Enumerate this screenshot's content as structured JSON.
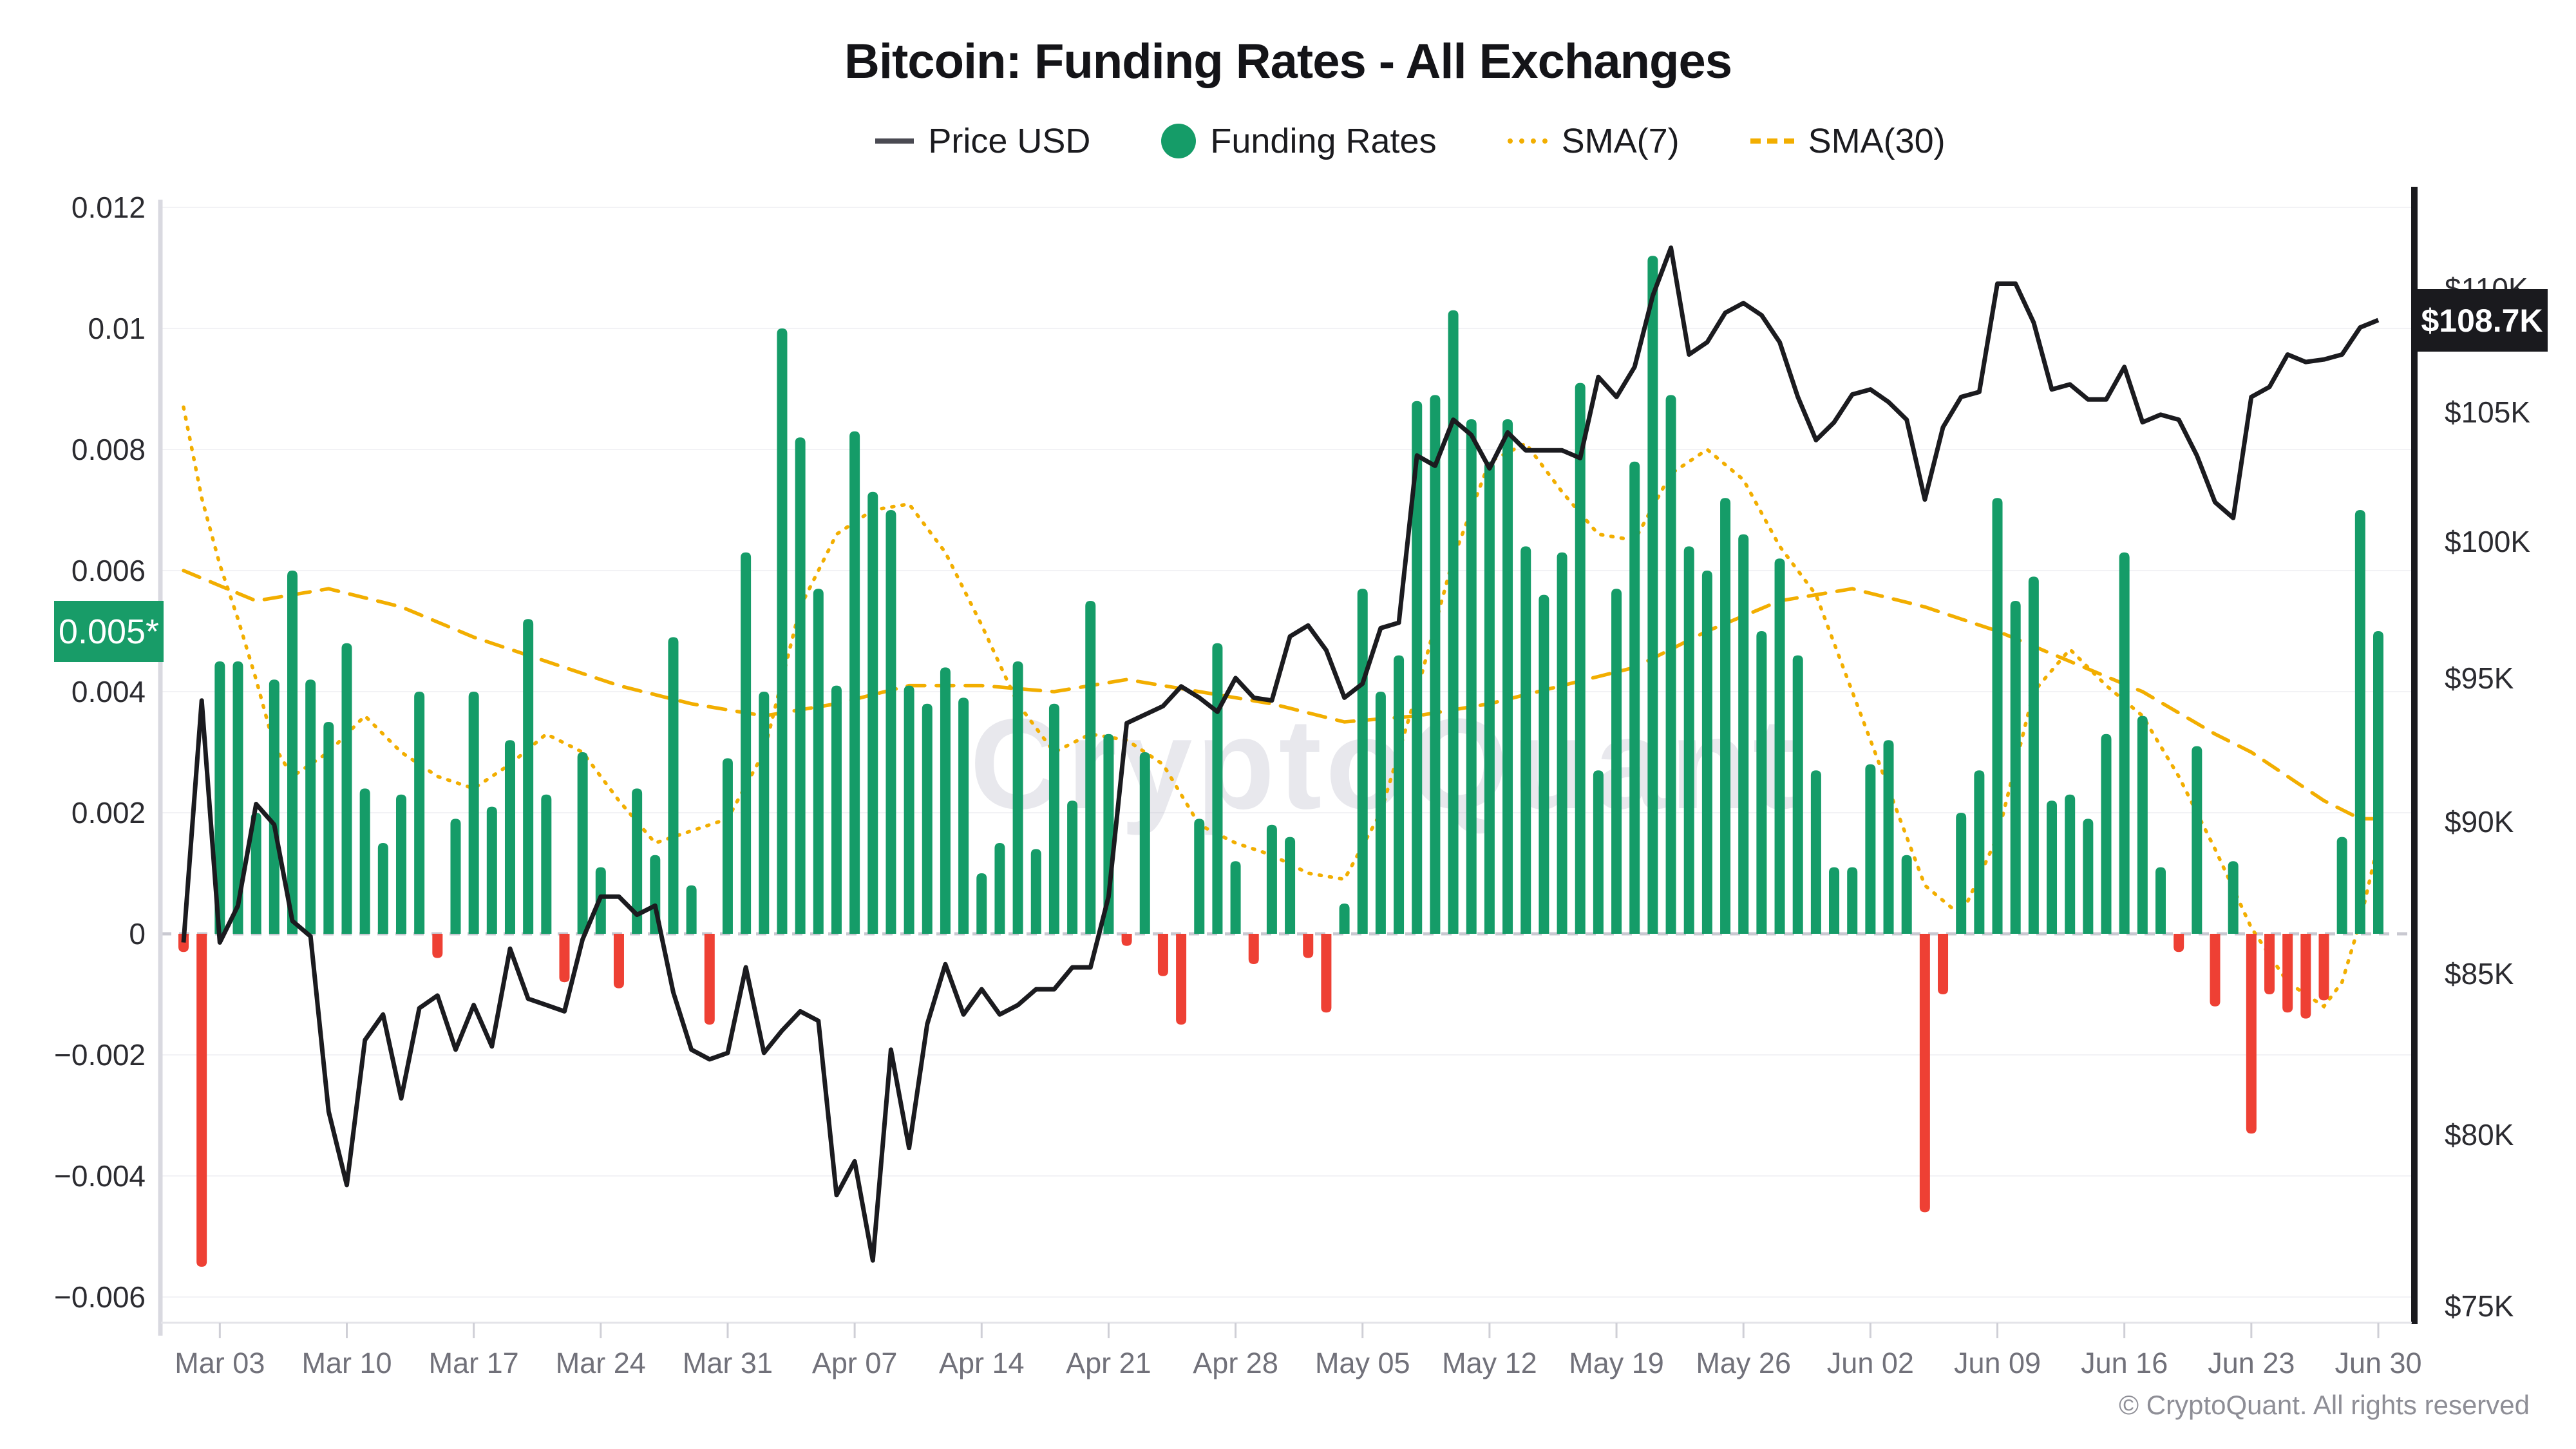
{
  "header": {
    "title": "Bitcoin: Funding Rates - All Exchanges"
  },
  "legend": {
    "items": [
      {
        "label": "Price USD",
        "swatch": "line-swatch"
      },
      {
        "label": "Funding Rates",
        "swatch": "circle-swatch"
      },
      {
        "label": "SMA(7)",
        "swatch": "dots-swatch"
      },
      {
        "label": "SMA(30)",
        "swatch": "dashes-swatch"
      }
    ]
  },
  "badges": {
    "funding_current": "0.005*",
    "price_current": "$108.7K"
  },
  "watermark": {
    "text": "CryptoQuant"
  },
  "footer": {
    "copyright": "© CryptoQuant. All rights reserved"
  },
  "colors": {
    "bar_positive": "#159c68",
    "bar_negative": "#ee4034",
    "price_line": "#1b1b1f",
    "sma_line": "#f2ae00",
    "grid": "#f2f2f5",
    "zero_line": "#c9c9d1",
    "axis_left_line": "#d9d9e0",
    "axis_right_line": "#1a1a1e",
    "tick_text": "#2b2b30",
    "x_text": "#71717a",
    "watermark": "#9a9cb0"
  },
  "chart_data": {
    "type": "bar",
    "title": "Bitcoin: Funding Rates - All Exchanges",
    "x_start_label": "Mar 03",
    "x_end_label": "Jun 30",
    "days": 122,
    "x_ticks": [
      {
        "i": 2,
        "label": "Mar 03"
      },
      {
        "i": 9,
        "label": "Mar 10"
      },
      {
        "i": 16,
        "label": "Mar 17"
      },
      {
        "i": 23,
        "label": "Mar 24"
      },
      {
        "i": 30,
        "label": "Mar 31"
      },
      {
        "i": 37,
        "label": "Apr 07"
      },
      {
        "i": 44,
        "label": "Apr 14"
      },
      {
        "i": 51,
        "label": "Apr 21"
      },
      {
        "i": 58,
        "label": "Apr 28"
      },
      {
        "i": 65,
        "label": "May 05"
      },
      {
        "i": 72,
        "label": "May 12"
      },
      {
        "i": 79,
        "label": "May 19"
      },
      {
        "i": 86,
        "label": "May 26"
      },
      {
        "i": 93,
        "label": "Jun 02"
      },
      {
        "i": 100,
        "label": "Jun 09"
      },
      {
        "i": 107,
        "label": "Jun 16"
      },
      {
        "i": 114,
        "label": "Jun 23"
      },
      {
        "i": 121,
        "label": "Jun 30"
      }
    ],
    "y_left": {
      "label": "Funding Rates",
      "min": -0.006,
      "max": 0.012,
      "grid": true,
      "ticks": [
        {
          "v": 0.012,
          "label": "0.012"
        },
        {
          "v": 0.01,
          "label": "0.01"
        },
        {
          "v": 0.008,
          "label": "0.008"
        },
        {
          "v": 0.006,
          "label": "0.006"
        },
        {
          "v": 0.004,
          "label": "0.004"
        },
        {
          "v": 0.002,
          "label": "0.002"
        },
        {
          "v": 0,
          "label": "0"
        },
        {
          "v": -0.002,
          "label": "−0.002"
        },
        {
          "v": -0.004,
          "label": "−0.004"
        },
        {
          "v": -0.006,
          "label": "−0.006"
        }
      ],
      "current_value": 0.005
    },
    "y_right": {
      "label": "Price USD",
      "scale": "log",
      "ticks": [
        {
          "v": 110,
          "label": "$110K"
        },
        {
          "v": 105,
          "label": "$105K"
        },
        {
          "v": 100,
          "label": "$100K"
        },
        {
          "v": 95,
          "label": "$95K"
        },
        {
          "v": 90,
          "label": "$90K"
        },
        {
          "v": 85,
          "label": "$85K"
        },
        {
          "v": 80,
          "label": "$80K"
        },
        {
          "v": 75,
          "label": "$75K"
        }
      ],
      "current_value": 108.7
    },
    "series": [
      {
        "name": "Funding Rates",
        "type": "bar",
        "values": [
          -0.0003,
          -0.0055,
          0.0045,
          0.0045,
          0.002,
          0.0042,
          0.006,
          0.0042,
          0.0035,
          0.0048,
          0.0024,
          0.0015,
          0.0023,
          0.004,
          -0.0004,
          0.0019,
          0.004,
          0.0021,
          0.0032,
          0.0052,
          0.0023,
          -0.0008,
          0.003,
          0.0011,
          -0.0009,
          0.0024,
          0.0013,
          0.0049,
          0.0008,
          -0.0015,
          0.0029,
          0.0063,
          0.004,
          0.01,
          0.0082,
          0.0057,
          0.0041,
          0.0083,
          0.0073,
          0.007,
          0.0041,
          0.0038,
          0.0044,
          0.0039,
          0.001,
          0.0015,
          0.0045,
          0.0014,
          0.0038,
          0.0022,
          0.0055,
          0.0033,
          -0.0002,
          0.003,
          -0.0007,
          -0.0015,
          0.0019,
          0.0048,
          0.0012,
          -0.0005,
          0.0018,
          0.0016,
          -0.0004,
          -0.0013,
          0.0005,
          0.0057,
          0.004,
          0.0046,
          0.0088,
          0.0089,
          0.0103,
          0.0085,
          0.0078,
          0.0085,
          0.0064,
          0.0056,
          0.0063,
          0.0091,
          0.0027,
          0.0057,
          0.0078,
          0.0112,
          0.0089,
          0.0064,
          0.006,
          0.0072,
          0.0066,
          0.005,
          0.0062,
          0.0046,
          0.0027,
          0.0011,
          0.0011,
          0.0028,
          0.0032,
          0.0013,
          -0.0046,
          -0.001,
          0.002,
          0.0027,
          0.0072,
          0.0055,
          0.0059,
          0.0022,
          0.0023,
          0.0019,
          0.0033,
          0.0063,
          0.0036,
          0.0011,
          -0.0003,
          0.0031,
          -0.0012,
          0.0012,
          -0.0033,
          -0.001,
          -0.0013,
          -0.0014,
          -0.0011,
          0.0016,
          0.007,
          0.005
        ]
      },
      {
        "name": "Price USD",
        "type": "line",
        "axis": "right",
        "unit": "K USD",
        "values": [
          86.0,
          94.2,
          86.0,
          87.2,
          90.6,
          89.9,
          86.7,
          86.2,
          80.7,
          78.5,
          82.9,
          83.7,
          81.1,
          83.9,
          84.3,
          82.6,
          84.0,
          82.7,
          85.8,
          84.2,
          84.0,
          83.8,
          86.1,
          87.5,
          87.5,
          86.9,
          87.2,
          84.4,
          82.6,
          82.3,
          82.5,
          85.2,
          82.5,
          83.2,
          83.8,
          83.5,
          78.2,
          79.2,
          76.3,
          82.6,
          79.6,
          83.4,
          85.3,
          83.7,
          84.5,
          83.7,
          84.0,
          84.5,
          84.5,
          85.2,
          85.2,
          87.5,
          93.4,
          93.7,
          94.0,
          94.7,
          94.3,
          93.8,
          95.0,
          94.3,
          94.2,
          96.5,
          96.9,
          96.0,
          94.3,
          94.8,
          96.8,
          97.0,
          103.3,
          102.9,
          104.7,
          104.1,
          102.8,
          104.2,
          103.5,
          103.5,
          103.5,
          103.2,
          106.4,
          105.6,
          106.8,
          109.7,
          111.7,
          107.3,
          107.8,
          109.0,
          109.4,
          108.9,
          107.8,
          105.6,
          103.9,
          104.6,
          105.7,
          105.9,
          105.4,
          104.7,
          101.6,
          104.4,
          105.6,
          105.8,
          110.2,
          110.2,
          108.6,
          105.9,
          106.1,
          105.5,
          105.5,
          106.8,
          104.6,
          104.9,
          104.7,
          103.3,
          101.5,
          100.9,
          105.6,
          106.0,
          107.3,
          107.0,
          107.1,
          107.3,
          108.4,
          108.7
        ]
      },
      {
        "name": "SMA(7)",
        "type": "line",
        "style": "dotted",
        "anchors": [
          [
            0,
            0.0087
          ],
          [
            1,
            0.0072
          ],
          [
            2,
            0.0061
          ],
          [
            3,
            0.0052
          ],
          [
            4,
            0.0042
          ],
          [
            5,
            0.0031
          ],
          [
            6,
            0.0026
          ],
          [
            8,
            0.003
          ],
          [
            10,
            0.0036
          ],
          [
            12,
            0.003
          ],
          [
            14,
            0.0026
          ],
          [
            16,
            0.0024
          ],
          [
            18,
            0.0028
          ],
          [
            20,
            0.0033
          ],
          [
            22,
            0.003
          ],
          [
            24,
            0.0022
          ],
          [
            26,
            0.0015
          ],
          [
            28,
            0.0017
          ],
          [
            30,
            0.0019
          ],
          [
            32,
            0.003
          ],
          [
            34,
            0.0054
          ],
          [
            36,
            0.0066
          ],
          [
            38,
            0.007
          ],
          [
            40,
            0.0071
          ],
          [
            42,
            0.0063
          ],
          [
            44,
            0.0051
          ],
          [
            46,
            0.0038
          ],
          [
            48,
            0.003
          ],
          [
            50,
            0.0033
          ],
          [
            52,
            0.0032
          ],
          [
            54,
            0.0028
          ],
          [
            56,
            0.0018
          ],
          [
            58,
            0.0015
          ],
          [
            60,
            0.0013
          ],
          [
            62,
            0.001
          ],
          [
            64,
            0.0009
          ],
          [
            66,
            0.002
          ],
          [
            68,
            0.004
          ],
          [
            70,
            0.0062
          ],
          [
            72,
            0.0078
          ],
          [
            74,
            0.0081
          ],
          [
            76,
            0.0073
          ],
          [
            78,
            0.0066
          ],
          [
            80,
            0.0065
          ],
          [
            82,
            0.0076
          ],
          [
            84,
            0.008
          ],
          [
            86,
            0.0075
          ],
          [
            88,
            0.0064
          ],
          [
            90,
            0.0056
          ],
          [
            92,
            0.004
          ],
          [
            94,
            0.0024
          ],
          [
            96,
            0.0008
          ],
          [
            98,
            0.0003
          ],
          [
            100,
            0.0016
          ],
          [
            102,
            0.004
          ],
          [
            104,
            0.0047
          ],
          [
            106,
            0.0041
          ],
          [
            108,
            0.0036
          ],
          [
            110,
            0.0026
          ],
          [
            112,
            0.0014
          ],
          [
            114,
            0.0001
          ],
          [
            116,
            -0.0008
          ],
          [
            118,
            -0.0012
          ],
          [
            119,
            -0.0008
          ],
          [
            120,
            0.0002
          ],
          [
            121,
            0.0015
          ]
        ]
      },
      {
        "name": "SMA(30)",
        "type": "line",
        "style": "dashed",
        "anchors": [
          [
            0,
            0.006
          ],
          [
            4,
            0.0055
          ],
          [
            8,
            0.0057
          ],
          [
            12,
            0.0054
          ],
          [
            16,
            0.0049
          ],
          [
            20,
            0.0045
          ],
          [
            24,
            0.0041
          ],
          [
            28,
            0.0038
          ],
          [
            32,
            0.0036
          ],
          [
            34,
            0.0037
          ],
          [
            36,
            0.0038
          ],
          [
            40,
            0.0041
          ],
          [
            44,
            0.0041
          ],
          [
            48,
            0.004
          ],
          [
            52,
            0.0042
          ],
          [
            56,
            0.004
          ],
          [
            60,
            0.0038
          ],
          [
            64,
            0.0035
          ],
          [
            68,
            0.0036
          ],
          [
            72,
            0.0038
          ],
          [
            76,
            0.0041
          ],
          [
            80,
            0.0044
          ],
          [
            84,
            0.005
          ],
          [
            88,
            0.0055
          ],
          [
            92,
            0.0057
          ],
          [
            96,
            0.0054
          ],
          [
            100,
            0.005
          ],
          [
            104,
            0.0045
          ],
          [
            108,
            0.004
          ],
          [
            112,
            0.0033
          ],
          [
            114,
            0.003
          ],
          [
            116,
            0.0026
          ],
          [
            118,
            0.0022
          ],
          [
            120,
            0.0019
          ],
          [
            121,
            0.0019
          ]
        ]
      }
    ]
  }
}
